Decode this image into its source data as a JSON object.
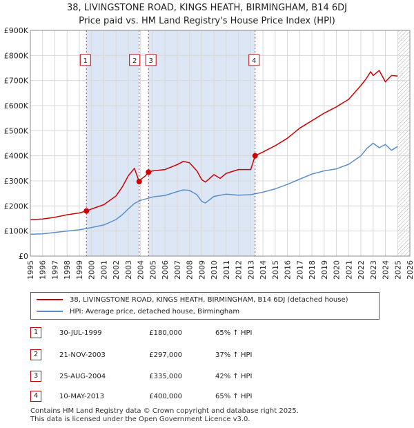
{
  "header": {
    "title_line1": "38, LIVINGSTONE ROAD, KINGS HEATH, BIRMINGHAM, B14 6DJ",
    "title_line2": "Price paid vs. HM Land Registry's House Price Index (HPI)"
  },
  "colors": {
    "price": "#cc0000",
    "hpi": "#5b8fc7",
    "shade": "#dde6f5",
    "marker_border": "#c00000"
  },
  "chart_data": {
    "type": "line",
    "ylim": [
      0,
      900000
    ],
    "xlim": [
      1995,
      2026
    ],
    "y_ticks": [
      0,
      100000,
      200000,
      300000,
      400000,
      500000,
      600000,
      700000,
      800000,
      900000
    ],
    "y_tick_labels": [
      "£0",
      "£100K",
      "£200K",
      "£300K",
      "£400K",
      "£500K",
      "£600K",
      "£700K",
      "£800K",
      "£900K"
    ],
    "x_ticks": [
      1995,
      1996,
      1997,
      1998,
      1999,
      2000,
      2001,
      2002,
      2003,
      2004,
      2005,
      2006,
      2007,
      2008,
      2009,
      2010,
      2011,
      2012,
      2013,
      2014,
      2015,
      2016,
      2017,
      2018,
      2019,
      2020,
      2021,
      2022,
      2023,
      2024,
      2025,
      2026
    ],
    "x_tick_labels": [
      "1995",
      "1996",
      "1997",
      "1998",
      "1999",
      "2000",
      "2001",
      "2002",
      "2003",
      "2004",
      "2005",
      "2006",
      "2007",
      "2008",
      "2009",
      "2010",
      "2011",
      "2012",
      "2013",
      "2014",
      "2015",
      "2016",
      "2017",
      "2018",
      "2019",
      "2020",
      "2021",
      "2022",
      "2023",
      "2024",
      "2025",
      "2026"
    ],
    "shaded_periods": [
      [
        1999.58,
        2003.89
      ],
      [
        2004.65,
        2013.36
      ]
    ],
    "future_hatch_from": 2025.0,
    "series": [
      {
        "name": "38, LIVINGSTONE ROAD, KINGS HEATH, BIRMINGHAM, B14 6DJ (detached house)",
        "x": [
          1995,
          1996,
          1997,
          1998,
          1999,
          1999.58,
          2000,
          2001,
          2002,
          2002.5,
          2003,
          2003.5,
          2003.89,
          2004,
          2004.4,
          2004.65,
          2005,
          2006,
          2007,
          2007.5,
          2008,
          2008.6,
          2009,
          2009.3,
          2010,
          2010.5,
          2011,
          2012,
          2013,
          2013.36,
          2014,
          2015,
          2016,
          2017,
          2018,
          2019,
          2020,
          2021,
          2022,
          2022.4,
          2022.8,
          2023,
          2023.5,
          2024,
          2024.5,
          2025
        ],
        "values": [
          145000,
          148000,
          155000,
          165000,
          172000,
          180000,
          188000,
          205000,
          240000,
          275000,
          320000,
          350000,
          297000,
          305000,
          320000,
          335000,
          340000,
          345000,
          365000,
          378000,
          372000,
          340000,
          305000,
          295000,
          325000,
          310000,
          330000,
          345000,
          345000,
          400000,
          415000,
          440000,
          470000,
          510000,
          540000,
          570000,
          595000,
          625000,
          680000,
          705000,
          735000,
          720000,
          740000,
          695000,
          720000,
          718000
        ]
      },
      {
        "name": "HPI: Average price, detached house, Birmingham",
        "x": [
          1995,
          1996,
          1997,
          1998,
          1999,
          2000,
          2001,
          2002,
          2002.5,
          2003,
          2003.5,
          2004,
          2005,
          2006,
          2007,
          2007.5,
          2008,
          2008.6,
          2009,
          2009.3,
          2010,
          2011,
          2012,
          2013,
          2014,
          2015,
          2016,
          2017,
          2018,
          2019,
          2020,
          2021,
          2022,
          2022.5,
          2023,
          2023.5,
          2024,
          2024.5,
          2025
        ],
        "values": [
          87000,
          89000,
          94000,
          100000,
          105000,
          114000,
          124000,
          146000,
          165000,
          188000,
          210000,
          222000,
          236000,
          242000,
          257000,
          264000,
          262000,
          245000,
          218000,
          212000,
          238000,
          247000,
          243000,
          245000,
          255000,
          268000,
          286000,
          307000,
          327000,
          340000,
          348000,
          366000,
          400000,
          430000,
          450000,
          432000,
          445000,
          422000,
          437000
        ]
      }
    ],
    "sales": [
      {
        "label": "1",
        "x": 1999.58,
        "value": 180000
      },
      {
        "label": "2",
        "x": 2003.89,
        "value": 297000
      },
      {
        "label": "3",
        "x": 2004.65,
        "value": 335000
      },
      {
        "label": "4",
        "x": 2013.36,
        "value": 400000
      }
    ]
  },
  "legend": {
    "price_label": "38, LIVINGSTONE ROAD, KINGS HEATH, BIRMINGHAM, B14 6DJ (detached house)",
    "hpi_label": "HPI: Average price, detached house, Birmingham"
  },
  "transactions": [
    {
      "num": "1",
      "date": "30-JUL-1999",
      "price": "£180,000",
      "hpi": "65% ↑ HPI"
    },
    {
      "num": "2",
      "date": "21-NOV-2003",
      "price": "£297,000",
      "hpi": "37% ↑ HPI"
    },
    {
      "num": "3",
      "date": "25-AUG-2004",
      "price": "£335,000",
      "hpi": "42% ↑ HPI"
    },
    {
      "num": "4",
      "date": "10-MAY-2013",
      "price": "£400,000",
      "hpi": "65% ↑ HPI"
    }
  ],
  "footer": {
    "line1": "Contains HM Land Registry data © Crown copyright and database right 2025.",
    "line2": "This data is licensed under the Open Government Licence v3.0."
  }
}
